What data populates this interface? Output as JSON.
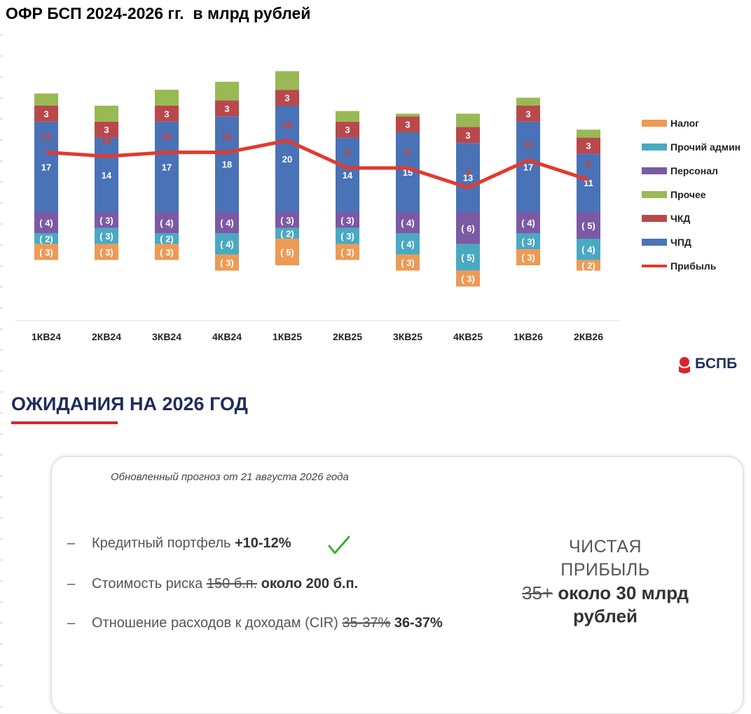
{
  "title": "ОФР БСП 2024-2026 гг.  в млрд рублей",
  "chart_data": {
    "type": "bar",
    "stacked": true,
    "categories": [
      "1КВ24",
      "2КВ24",
      "3КВ24",
      "4КВ24",
      "1КВ25",
      "2КВ25",
      "3КВ25",
      "4КВ25",
      "1КВ26",
      "2КВ26"
    ],
    "series": [
      {
        "name": "ЧПД",
        "color": "#4a72b7",
        "values": [
          17,
          14,
          17,
          18,
          20,
          14,
          15,
          13,
          17,
          11
        ]
      },
      {
        "name": "ЧКД",
        "color": "#b9484b",
        "values": [
          3,
          3,
          3,
          3,
          3,
          3,
          3,
          3,
          3,
          3
        ]
      },
      {
        "name": "Прочее",
        "color": "#98b954",
        "values": [
          2.3,
          3,
          3,
          3.5,
          3.5,
          2,
          0.5,
          2.5,
          1.5,
          1.5
        ]
      },
      {
        "name": "Персонал",
        "color": "#7b5aa5",
        "values": [
          -4,
          -3,
          -4,
          -4,
          -3,
          -3,
          -4,
          -6,
          -4,
          -5
        ]
      },
      {
        "name": "Прочий админ",
        "color": "#4aa9c2",
        "values": [
          -2,
          -3,
          -2,
          -4,
          -2,
          -3,
          -4,
          -5,
          -3,
          -4
        ]
      },
      {
        "name": "Налог",
        "color": "#ed9a55",
        "values": [
          -3,
          -3,
          -3,
          -3,
          -5,
          -3,
          -3,
          -3,
          -3,
          -2
        ]
      }
    ],
    "line_series": {
      "name": "Прибыль",
      "color": "#e23a2e",
      "values": [
        13,
        12,
        13,
        13,
        16,
        9,
        9,
        4,
        11,
        6
      ]
    },
    "legend": [
      "Налог",
      "Прочий админ",
      "Персонал",
      "Прочее",
      "ЧКД",
      "ЧПД",
      "Прибыль"
    ],
    "legend_position": "right",
    "grid": false
  },
  "logo_text": "БСПБ",
  "section_title": "ОЖИДАНИЯ НА 2026 ГОД",
  "card": {
    "subtitle": "Обновленный прогноз от 21 августа 2026 года",
    "bullets": [
      {
        "dash": "–",
        "text": "Кредитный портфель ",
        "strike": "",
        "bold": "+10-12%"
      },
      {
        "dash": "–",
        "text": "Стоимость риска ",
        "strike": "150 б.п.",
        "bold": " около 200 б.п."
      },
      {
        "dash": "–",
        "text": "Отношение расходов к доходам (CIR) ",
        "strike": "35-37%",
        "bold": " 36-37%"
      }
    ],
    "profit": {
      "line1": "ЧИСТАЯ",
      "line2": "ПРИБЫЛЬ",
      "strike": "35+",
      "bold": " около 30 млрд",
      "line4": "рублей"
    }
  }
}
